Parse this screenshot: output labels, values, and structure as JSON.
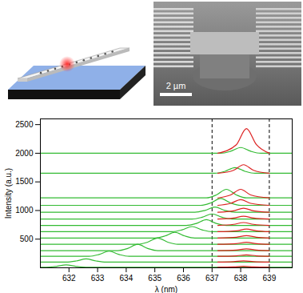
{
  "micrograph": {
    "scale_bar": "2 µm"
  },
  "chart_data": {
    "type": "line",
    "xlabel": "λ (nm)",
    "ylabel": "Intensity (a.u.)",
    "xlim": [
      631,
      639.8
    ],
    "xticks": [
      632,
      633,
      634,
      635,
      636,
      637,
      638,
      639
    ],
    "ylim": [
      0,
      2600
    ],
    "yticks": [
      500,
      1000,
      1500,
      2000,
      2500
    ],
    "grid": false,
    "reference_lines": {
      "x": [
        637,
        639
      ],
      "line_style": "dashed"
    },
    "series": [
      {
        "color": "#33bb33",
        "x": [
          631,
          631.2,
          631.55,
          631.9,
          632.25,
          632.6,
          639.8
        ],
        "values": [
          10,
          10,
          24,
          50,
          24,
          10,
          10
        ]
      },
      {
        "color": "#33bb33",
        "x": [
          631,
          631.9,
          632.25,
          632.6,
          632.95,
          633.3,
          639.8
        ],
        "values": [
          100,
          100,
          119,
          155,
          119,
          100,
          100
        ]
      },
      {
        "color": "#33bb33",
        "x": [
          631,
          632.7,
          633.05,
          633.4,
          633.75,
          634.1,
          639.8
        ],
        "values": [
          200,
          200,
          232,
          290,
          232,
          200,
          200
        ]
      },
      {
        "color": "#33bb33",
        "x": [
          631,
          633.7,
          634.05,
          634.4,
          634.75,
          635.1,
          639.8
        ],
        "values": [
          300,
          300,
          338,
          410,
          338,
          300,
          300
        ]
      },
      {
        "color": "#33bb33",
        "x": [
          631,
          634.4,
          634.75,
          635.1,
          635.45,
          635.8,
          639.8
        ],
        "values": [
          410,
          410,
          448,
          520,
          448,
          410,
          410
        ]
      },
      {
        "color": "#33bb33",
        "x": [
          631,
          635,
          635.35,
          635.7,
          636.05,
          636.4,
          639.8
        ],
        "values": [
          520,
          520,
          555,
          620,
          555,
          520,
          520
        ]
      },
      {
        "color": "#33bb33",
        "x": [
          631,
          635.6,
          635.95,
          636.3,
          636.65,
          637,
          639.8
        ],
        "values": [
          630,
          630,
          662,
          720,
          662,
          630,
          630
        ]
      },
      {
        "color": "#33bb33",
        "x": [
          631,
          636.1,
          636.45,
          636.8,
          637.15,
          637.5,
          639.8
        ],
        "values": [
          740,
          740,
          775,
          840,
          775,
          740,
          740
        ]
      },
      {
        "color": "#33bb33",
        "x": [
          631,
          636.3,
          636.65,
          637,
          637.35,
          637.7,
          639.8
        ],
        "values": [
          850,
          850,
          882,
          940,
          882,
          850,
          850
        ]
      },
      {
        "color": "#33bb33",
        "x": [
          631,
          636.4,
          636.75,
          637.1,
          637.45,
          637.8,
          639.8
        ],
        "values": [
          970,
          970,
          1002,
          1060,
          1002,
          970,
          970
        ]
      },
      {
        "color": "#33bb33",
        "x": [
          631,
          636.6,
          636.95,
          637.3,
          637.65,
          638,
          639.8
        ],
        "values": [
          1090,
          1090,
          1132,
          1210,
          1132,
          1090,
          1090
        ]
      },
      {
        "color": "#33bb33",
        "x": [
          631,
          636.8,
          637.15,
          637.5,
          637.85,
          638.2,
          639.8
        ],
        "values": [
          1220,
          1220,
          1272,
          1370,
          1272,
          1220,
          1220
        ]
      },
      {
        "color": "#33bb33",
        "x": [
          631,
          637.1,
          637.45,
          637.8,
          638.15,
          638.5,
          639.8
        ],
        "values": [
          1650,
          1650,
          1685,
          1750,
          1685,
          1650,
          1650
        ]
      },
      {
        "color": "#33bb33",
        "x": [
          631,
          637.3,
          637.65,
          638,
          638.35,
          638.7,
          639.8
        ],
        "values": [
          2000,
          2000,
          2035,
          2100,
          2035,
          2000,
          2000
        ]
      },
      {
        "color": "#dd2222",
        "x": [
          637.2,
          637.75,
          638.1,
          638.45,
          639
        ],
        "values": [
          10,
          15,
          25,
          15,
          10
        ]
      },
      {
        "color": "#dd2222",
        "x": [
          637.2,
          637.75,
          638.1,
          638.45,
          639
        ],
        "values": [
          100,
          107,
          120,
          107,
          100
        ]
      },
      {
        "color": "#dd2222",
        "x": [
          637.2,
          637.85,
          638.2,
          638.55,
          639
        ],
        "values": [
          200,
          209,
          225,
          209,
          200
        ]
      },
      {
        "color": "#dd2222",
        "x": [
          637.2,
          637.85,
          638.2,
          638.55,
          639
        ],
        "values": [
          300,
          310,
          330,
          310,
          300
        ]
      },
      {
        "color": "#dd2222",
        "x": [
          637.2,
          637.85,
          638.2,
          638.55,
          639
        ],
        "values": [
          410,
          422,
          445,
          422,
          410
        ]
      },
      {
        "color": "#dd2222",
        "x": [
          637.2,
          637.85,
          638.2,
          638.55,
          639
        ],
        "values": [
          520,
          534,
          560,
          534,
          520
        ]
      },
      {
        "color": "#dd2222",
        "x": [
          637.2,
          637.85,
          638.2,
          638.55,
          639
        ],
        "values": [
          630,
          646,
          675,
          646,
          630
        ]
      },
      {
        "color": "#dd2222",
        "x": [
          637.2,
          637.75,
          638.1,
          638.45,
          639
        ],
        "values": [
          740,
          758,
          790,
          758,
          740
        ]
      },
      {
        "color": "#dd2222",
        "x": [
          637.2,
          637.75,
          638.1,
          638.45,
          639
        ],
        "values": [
          850,
          868,
          900,
          868,
          850
        ]
      },
      {
        "color": "#dd2222",
        "x": [
          637.2,
          637.75,
          638.1,
          638.45,
          639
        ],
        "values": [
          970,
          995,
          1040,
          995,
          970
        ]
      },
      {
        "color": "#dd2222",
        "x": [
          637.2,
          637.65,
          638,
          638.35,
          639
        ],
        "values": [
          1090,
          1125,
          1190,
          1125,
          1090
        ]
      },
      {
        "color": "#dd2222",
        "x": [
          637.2,
          637.65,
          638,
          638.35,
          639
        ],
        "values": [
          1220,
          1272,
          1370,
          1272,
          1220
        ]
      },
      {
        "color": "#dd2222",
        "x": [
          637.2,
          637.75,
          638.1,
          638.45,
          639
        ],
        "values": [
          1650,
          1702,
          1800,
          1702,
          1650
        ]
      },
      {
        "color": "#dd2222",
        "x": [
          637.2,
          637.85,
          638.2,
          638.55,
          639
        ],
        "values": [
          2000,
          2150,
          2430,
          2150,
          2000
        ]
      }
    ]
  }
}
